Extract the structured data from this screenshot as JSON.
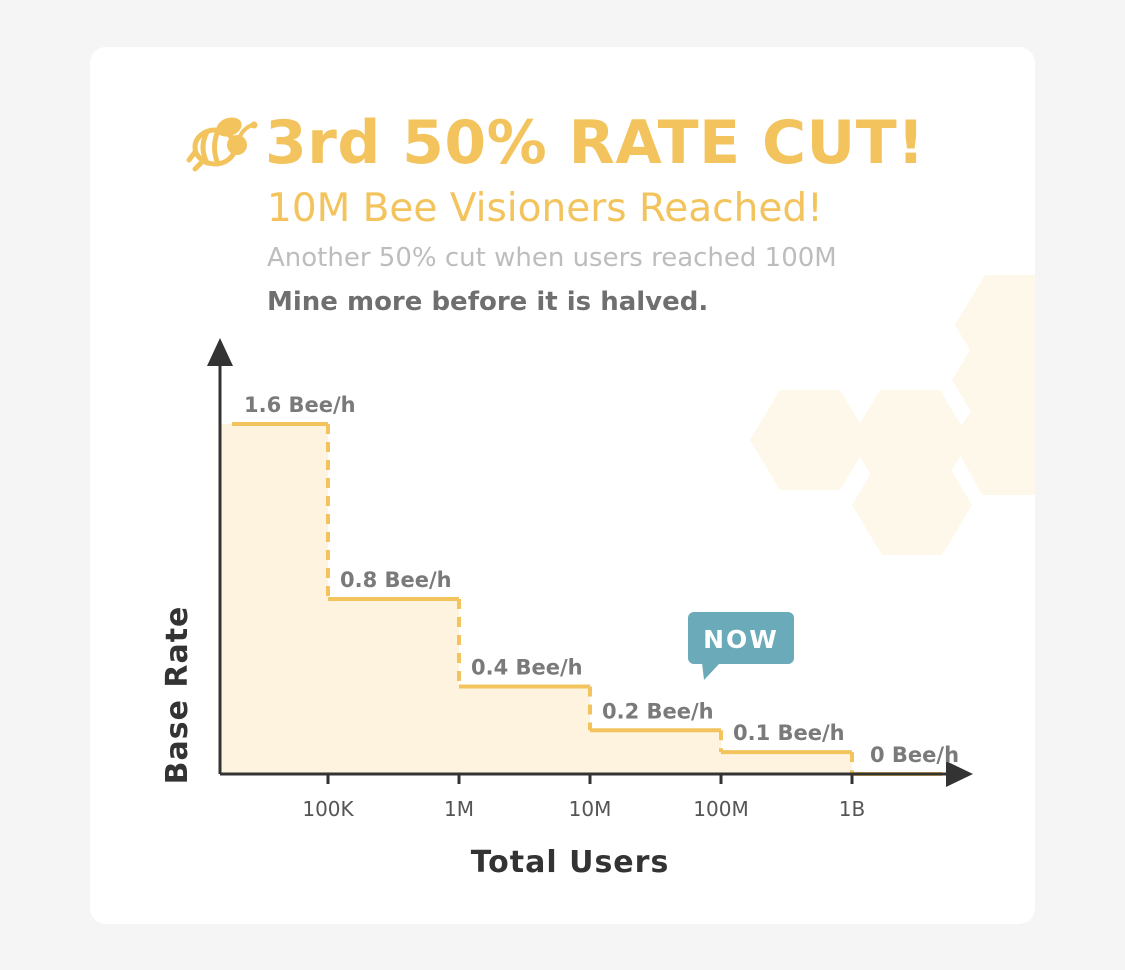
{
  "header": {
    "title": "3rd 50% RATE CUT!",
    "subtitle": "10M Bee Visioners Reached!",
    "note": "Another 50% cut when users reached 100M",
    "cta": "Mine more before it is halved."
  },
  "icons": {
    "logo": "bee-icon"
  },
  "colors": {
    "accent": "#f3c45d",
    "fill": "#fdf3df",
    "axis": "#333333",
    "callout": "#6aaab9",
    "text_gray": "#7a7a7a"
  },
  "chart_data": {
    "type": "step-area",
    "xlabel": "Total Users",
    "ylabel": "Base Rate",
    "x_ticks": [
      "100K",
      "1M",
      "10M",
      "100M",
      "1B"
    ],
    "segments": [
      {
        "from": null,
        "to": "100K",
        "value": 1.6,
        "label": "1.6 Bee/h"
      },
      {
        "from": "100K",
        "to": "1M",
        "value": 0.8,
        "label": "0.8 Bee/h"
      },
      {
        "from": "1M",
        "to": "10M",
        "value": 0.4,
        "label": "0.4 Bee/h"
      },
      {
        "from": "10M",
        "to": "100M",
        "value": 0.2,
        "label": "0.2 Bee/h"
      },
      {
        "from": "100M",
        "to": "1B",
        "value": 0.1,
        "label": "0.1 Bee/h"
      },
      {
        "from": "1B",
        "to": null,
        "value": 0,
        "label": "0 Bee/h"
      }
    ],
    "ylim": [
      0,
      1.6
    ],
    "callout": {
      "text": "NOW",
      "segment_index": 3
    }
  }
}
